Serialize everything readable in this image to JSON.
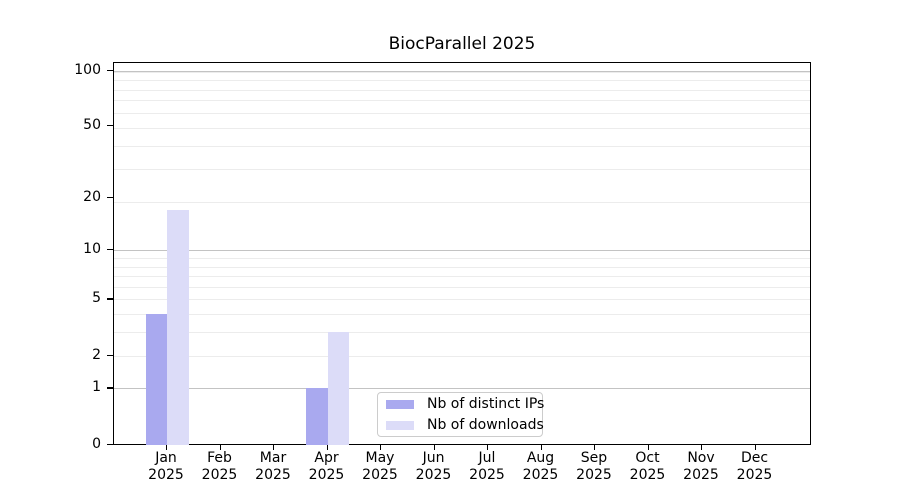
{
  "chart_data": {
    "type": "bar",
    "title": "BiocParallel 2025",
    "categories": [
      "Jan",
      "Feb",
      "Mar",
      "Apr",
      "May",
      "Jun",
      "Jul",
      "Aug",
      "Sep",
      "Oct",
      "Nov",
      "Dec"
    ],
    "x_year_label": "2025",
    "series": [
      {
        "name": "Nb of distinct IPs",
        "color": "#a9a9ef",
        "values": [
          4,
          0,
          0,
          1,
          0,
          0,
          0,
          0,
          0,
          0,
          0,
          0
        ]
      },
      {
        "name": "Nb of downloads",
        "color": "#dcdcf8",
        "values": [
          17,
          0,
          0,
          3,
          0,
          0,
          0,
          0,
          0,
          0,
          0,
          0
        ]
      }
    ],
    "y_scale": "log10(1+value)",
    "y_ticks": [
      0,
      1,
      2,
      5,
      10,
      20,
      50,
      100
    ],
    "ylim": [
      0,
      112
    ],
    "major_grid_values": [
      1,
      10,
      100
    ],
    "minor_grid_values": [
      1,
      2,
      3,
      4,
      5,
      6,
      7,
      8,
      9,
      19,
      29,
      39,
      49,
      59,
      69,
      79,
      89,
      99
    ],
    "grid": true,
    "legend_position": "inside-bottom-center",
    "colors": {
      "axis": "#000000",
      "major_grid": "#c3c3c3",
      "minor_grid": "#ececec",
      "legend_border": "#cccccc",
      "background": "#ffffff"
    }
  }
}
